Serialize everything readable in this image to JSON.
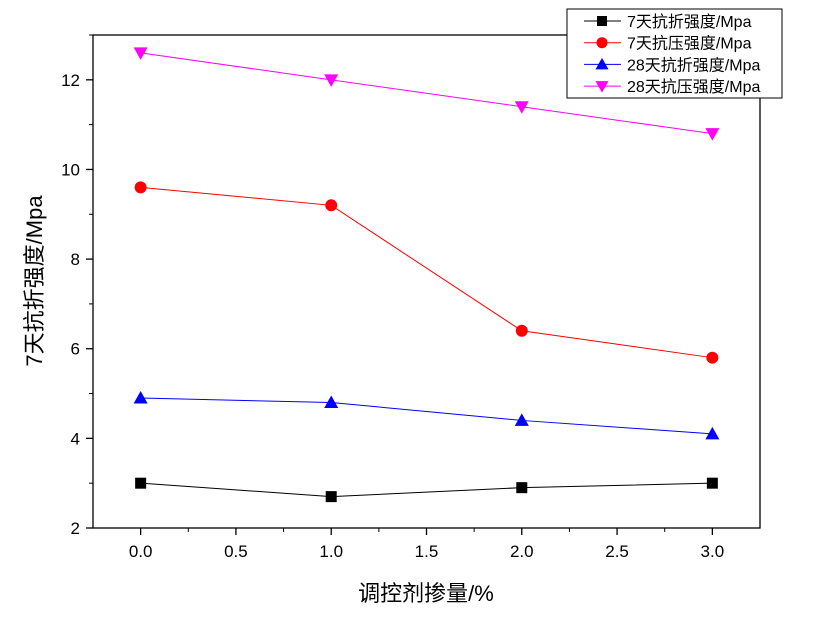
{
  "chart_data": {
    "type": "line",
    "title": "",
    "xlabel": "调控剂掺量/%",
    "ylabel": "7天抗折强度/Mpa",
    "xlim": [
      -0.25,
      3.25
    ],
    "ylim": [
      2,
      13
    ],
    "x_ticks": [
      "0.0",
      "0.5",
      "1.0",
      "1.5",
      "2.0",
      "2.5",
      "3.0"
    ],
    "y_ticks": [
      "2",
      "4",
      "6",
      "8",
      "10",
      "12"
    ],
    "legend_position": "top-right",
    "x": [
      0,
      1,
      2,
      3
    ],
    "series": [
      {
        "name": "7天抗折强度/Mpa",
        "color": "#000000",
        "marker": "square",
        "values": [
          3.0,
          2.7,
          2.9,
          3.0
        ]
      },
      {
        "name": "7天抗压强度/Mpa",
        "color": "#ff0000",
        "marker": "circle",
        "values": [
          9.6,
          9.2,
          6.4,
          5.8
        ]
      },
      {
        "name": "28天抗折强度/Mpa",
        "color": "#0000ff",
        "marker": "triangle-up",
        "values": [
          4.9,
          4.8,
          4.4,
          4.1
        ]
      },
      {
        "name": "28天抗压强度/Mpa",
        "color": "#ff00ff",
        "marker": "triangle-down",
        "values": [
          12.6,
          12.0,
          11.4,
          10.8
        ]
      }
    ]
  }
}
